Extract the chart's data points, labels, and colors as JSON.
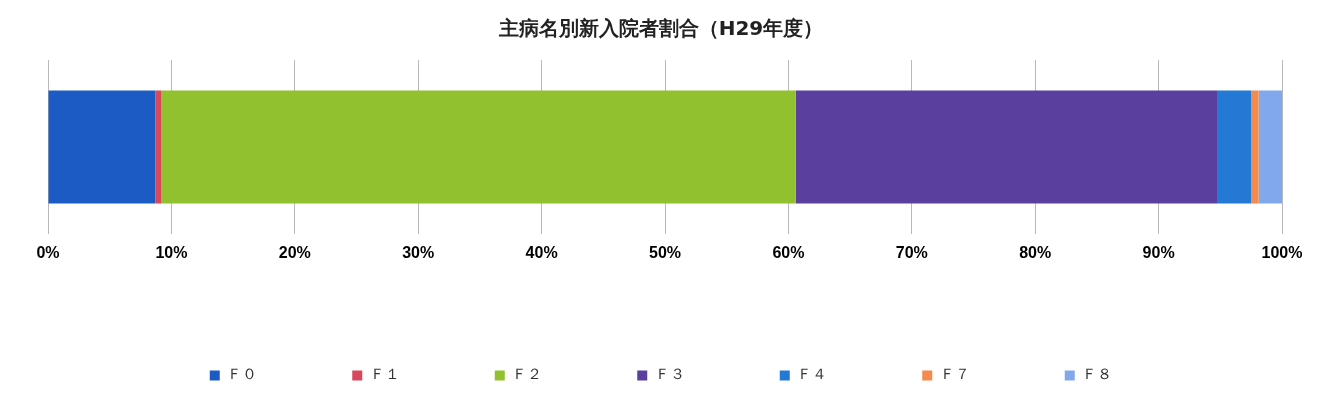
{
  "chart_data": {
    "type": "bar",
    "orientation": "horizontal",
    "stacked": true,
    "title": "主病名別新入院者割合（H29年度）",
    "categories": [
      null
    ],
    "series": [
      {
        "name": "Ｆ０",
        "color": "#1c5bc4",
        "values": [
          8.7
        ]
      },
      {
        "name": "Ｆ１",
        "color": "#d9475a",
        "values": [
          0.5
        ]
      },
      {
        "name": "Ｆ２",
        "color": "#92c12f",
        "values": [
          51.4
        ]
      },
      {
        "name": "Ｆ３",
        "color": "#5b3f9e",
        "values": [
          34.2
        ]
      },
      {
        "name": "Ｆ４",
        "color": "#2479d4",
        "values": [
          2.7
        ]
      },
      {
        "name": "Ｆ７",
        "color": "#f58a4c",
        "values": [
          0.6
        ]
      },
      {
        "name": "Ｆ８",
        "color": "#82a8ec",
        "values": [
          1.9
        ]
      }
    ],
    "xlim": [
      0,
      100
    ],
    "xticks": [
      {
        "value": 0,
        "label": "0%"
      },
      {
        "value": 10,
        "label": "10%"
      },
      {
        "value": 20,
        "label": "20%"
      },
      {
        "value": 30,
        "label": "30%"
      },
      {
        "value": 40,
        "label": "40%"
      },
      {
        "value": 50,
        "label": "50%"
      },
      {
        "value": 60,
        "label": "60%"
      },
      {
        "value": 70,
        "label": "70%"
      },
      {
        "value": 80,
        "label": "80%"
      },
      {
        "value": 90,
        "label": "90%"
      },
      {
        "value": 100,
        "label": "100%"
      }
    ],
    "grid": "x",
    "legend": "bottom"
  }
}
